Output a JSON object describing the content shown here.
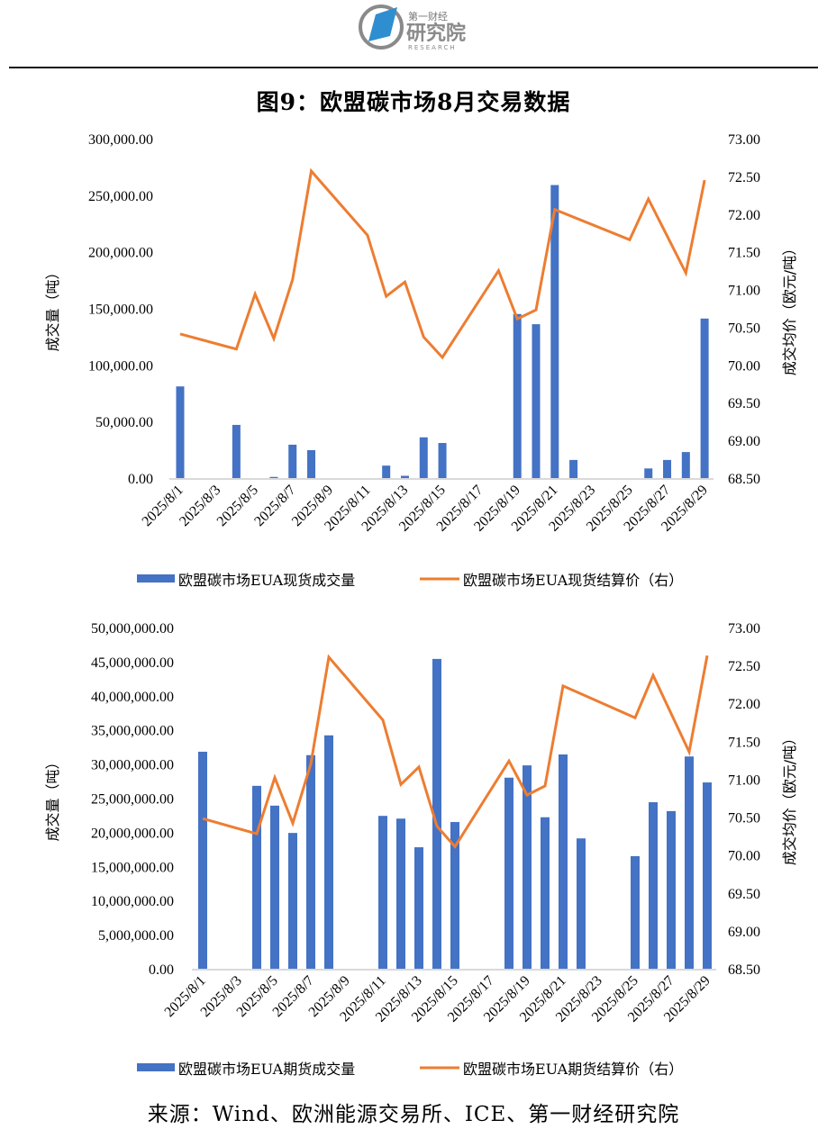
{
  "header": {
    "logo_text_top": "第一财经",
    "logo_text_main": "研究院",
    "logo_text_sub": "RESEARCH",
    "figure_title": "图9：欧盟碳市场8月交易数据"
  },
  "colors": {
    "bar": "#4472C4",
    "line": "#ED7D31",
    "axis": "#D9D9D9"
  },
  "source": "来源：Wind、欧洲能源交易所、ICE、第一财经研究院",
  "chart_data": [
    {
      "type": "bar+line",
      "title": "",
      "y_left_label": "成交量（吨）",
      "y_right_label": "成交均价（欧元/吨）",
      "ylim_left": [
        0,
        300000
      ],
      "ylim_right": [
        68.5,
        73.0
      ],
      "y_left_ticks": [
        "0.00",
        "50,000.00",
        "100,000.00",
        "150,000.00",
        "200,000.00",
        "250,000.00",
        "300,000.00"
      ],
      "y_right_ticks": [
        "68.50",
        "69.00",
        "69.50",
        "70.00",
        "70.50",
        "71.00",
        "71.50",
        "72.00",
        "72.50",
        "73.00"
      ],
      "x_tick_labels": [
        "2025/8/1",
        "2025/8/3",
        "2025/8/5",
        "2025/8/7",
        "2025/8/9",
        "2025/8/11",
        "2025/8/13",
        "2025/8/15",
        "2025/8/17",
        "2025/8/19",
        "2025/8/21",
        "2025/8/23",
        "2025/8/25",
        "2025/8/27",
        "2025/8/29"
      ],
      "legend_position": "bottom",
      "grid": false,
      "series": [
        {
          "name": "欧盟碳市场EUA现货成交量",
          "kind": "bar",
          "axis": "left",
          "points": [
            {
              "day": 1,
              "value": 81000
            },
            {
              "day": 4,
              "value": 47000
            },
            {
              "day": 6,
              "value": 1000
            },
            {
              "day": 7,
              "value": 29500
            },
            {
              "day": 8,
              "value": 24700
            },
            {
              "day": 12,
              "value": 11000
            },
            {
              "day": 13,
              "value": 2000
            },
            {
              "day": 14,
              "value": 36000
            },
            {
              "day": 15,
              "value": 31000
            },
            {
              "day": 19,
              "value": 145000
            },
            {
              "day": 20,
              "value": 136000
            },
            {
              "day": 21,
              "value": 259000
            },
            {
              "day": 22,
              "value": 16000
            },
            {
              "day": 26,
              "value": 8500
            },
            {
              "day": 27,
              "value": 16000
            },
            {
              "day": 28,
              "value": 23000
            },
            {
              "day": 29,
              "value": 141000
            }
          ]
        },
        {
          "name": "欧盟碳市场EUA现货结算价（右）",
          "kind": "line",
          "axis": "right",
          "points": [
            {
              "day": 1,
              "value": 70.41
            },
            {
              "day": 4,
              "value": 70.21
            },
            {
              "day": 5,
              "value": 70.94
            },
            {
              "day": 6,
              "value": 70.35
            },
            {
              "day": 7,
              "value": 71.13
            },
            {
              "day": 8,
              "value": 72.57
            },
            {
              "day": 11,
              "value": 71.72
            },
            {
              "day": 12,
              "value": 70.91
            },
            {
              "day": 13,
              "value": 71.1
            },
            {
              "day": 14,
              "value": 70.37
            },
            {
              "day": 15,
              "value": 70.1
            },
            {
              "day": 18,
              "value": 71.25
            },
            {
              "day": 19,
              "value": 70.61
            },
            {
              "day": 20,
              "value": 70.73
            },
            {
              "day": 21,
              "value": 72.06
            },
            {
              "day": 25,
              "value": 71.66
            },
            {
              "day": 26,
              "value": 72.2
            },
            {
              "day": 28,
              "value": 71.22
            },
            {
              "day": 29,
              "value": 72.45
            }
          ]
        }
      ]
    },
    {
      "type": "bar+line",
      "title": "",
      "y_left_label": "成交量（吨）",
      "y_right_label": "成交均价（欧元/吨）",
      "ylim_left": [
        0,
        50000000
      ],
      "ylim_right": [
        68.5,
        73.0
      ],
      "y_left_ticks": [
        "0.00",
        "5,000,000.00",
        "10,000,000.00",
        "15,000,000.00",
        "20,000,000.00",
        "25,000,000.00",
        "30,000,000.00",
        "35,000,000.00",
        "40,000,000.00",
        "45,000,000.00",
        "50,000,000.00"
      ],
      "y_right_ticks": [
        "68.50",
        "69.00",
        "69.50",
        "70.00",
        "70.50",
        "71.00",
        "71.50",
        "72.00",
        "72.50",
        "73.00"
      ],
      "x_tick_labels": [
        "2025/8/1",
        "2025/8/3",
        "2025/8/5",
        "2025/8/7",
        "2025/8/9",
        "2025/8/11",
        "2025/8/13",
        "2025/8/15",
        "2025/8/17",
        "2025/8/19",
        "2025/8/21",
        "2025/8/23",
        "2025/8/25",
        "2025/8/27",
        "2025/8/29"
      ],
      "legend_position": "bottom",
      "grid": false,
      "series": [
        {
          "name": "欧盟碳市场EUA期货成交量",
          "kind": "bar",
          "axis": "left",
          "points": [
            {
              "day": 1,
              "value": 31800000
            },
            {
              "day": 4,
              "value": 26800000
            },
            {
              "day": 5,
              "value": 23900000
            },
            {
              "day": 6,
              "value": 19900000
            },
            {
              "day": 7,
              "value": 31300000
            },
            {
              "day": 8,
              "value": 34200000
            },
            {
              "day": 11,
              "value": 22400000
            },
            {
              "day": 12,
              "value": 22000000
            },
            {
              "day": 13,
              "value": 17800000
            },
            {
              "day": 14,
              "value": 45400000
            },
            {
              "day": 15,
              "value": 21500000
            },
            {
              "day": 18,
              "value": 28000000
            },
            {
              "day": 19,
              "value": 29800000
            },
            {
              "day": 20,
              "value": 22200000
            },
            {
              "day": 21,
              "value": 31400000
            },
            {
              "day": 22,
              "value": 19100000
            },
            {
              "day": 25,
              "value": 16500000
            },
            {
              "day": 26,
              "value": 24400000
            },
            {
              "day": 27,
              "value": 23100000
            },
            {
              "day": 28,
              "value": 31100000
            },
            {
              "day": 29,
              "value": 27300000
            }
          ]
        },
        {
          "name": "欧盟碳市场EUA期货结算价（右）",
          "kind": "line",
          "axis": "right",
          "points": [
            {
              "day": 1,
              "value": 70.48
            },
            {
              "day": 4,
              "value": 70.28
            },
            {
              "day": 5,
              "value": 71.02
            },
            {
              "day": 6,
              "value": 70.42
            },
            {
              "day": 7,
              "value": 71.2
            },
            {
              "day": 8,
              "value": 72.61
            },
            {
              "day": 11,
              "value": 71.78
            },
            {
              "day": 12,
              "value": 70.93
            },
            {
              "day": 13,
              "value": 71.16
            },
            {
              "day": 14,
              "value": 70.38
            },
            {
              "day": 15,
              "value": 70.11
            },
            {
              "day": 18,
              "value": 71.24
            },
            {
              "day": 19,
              "value": 70.79
            },
            {
              "day": 20,
              "value": 70.91
            },
            {
              "day": 21,
              "value": 72.23
            },
            {
              "day": 25,
              "value": 71.81
            },
            {
              "day": 26,
              "value": 72.37
            },
            {
              "day": 28,
              "value": 71.36
            },
            {
              "day": 29,
              "value": 72.63
            }
          ]
        }
      ]
    }
  ]
}
